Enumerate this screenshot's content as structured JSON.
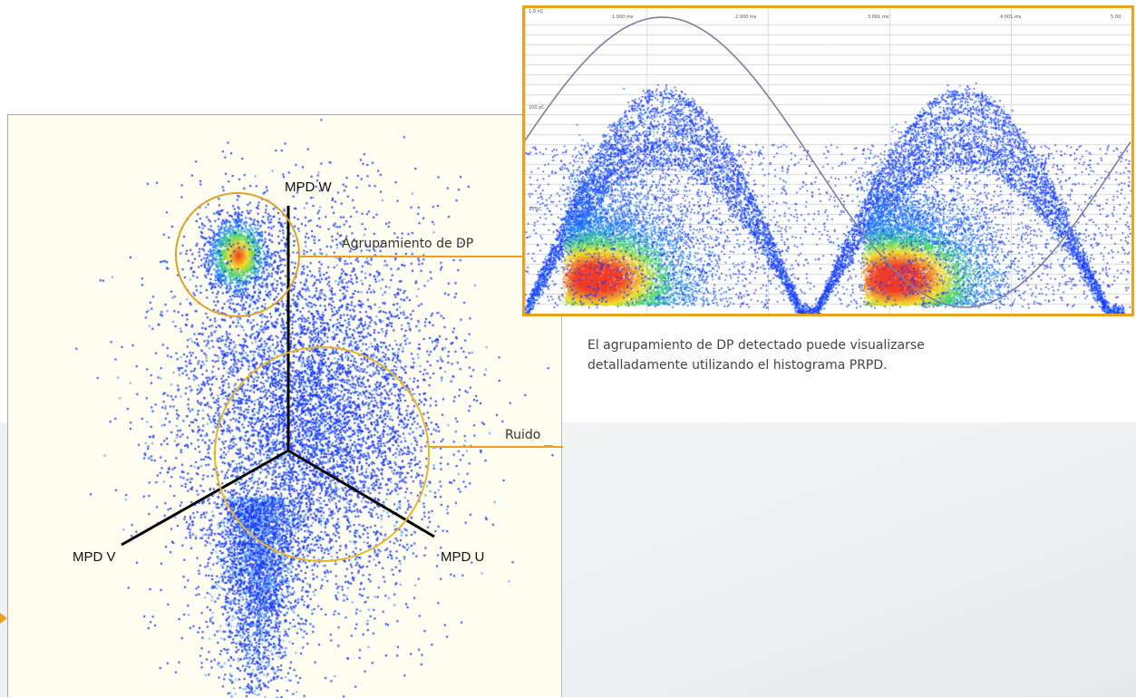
{
  "star_diagram": {
    "axis_w": "MPD W",
    "axis_v": "MPD V",
    "axis_u": "MPD U",
    "cluster_label": "Agrupamiento de DP",
    "noise_label": "Ruido"
  },
  "prpd_chart": {
    "top_tick_labels": [
      "1.000 ms",
      "2.000 ms",
      "3.001 ms",
      "4.001 ms",
      "5.00"
    ],
    "left_tick_labels": [
      "1.0 nC",
      "100 pC",
      "10 pC"
    ]
  },
  "caption": "El agrupamiento de DP detectado puede visualizarse detalladamente utilizando el histograma PRPD.",
  "colors": {
    "accent": "#e8a21b",
    "panel_bg": "#fefdf0",
    "points": "#1a3bff"
  }
}
